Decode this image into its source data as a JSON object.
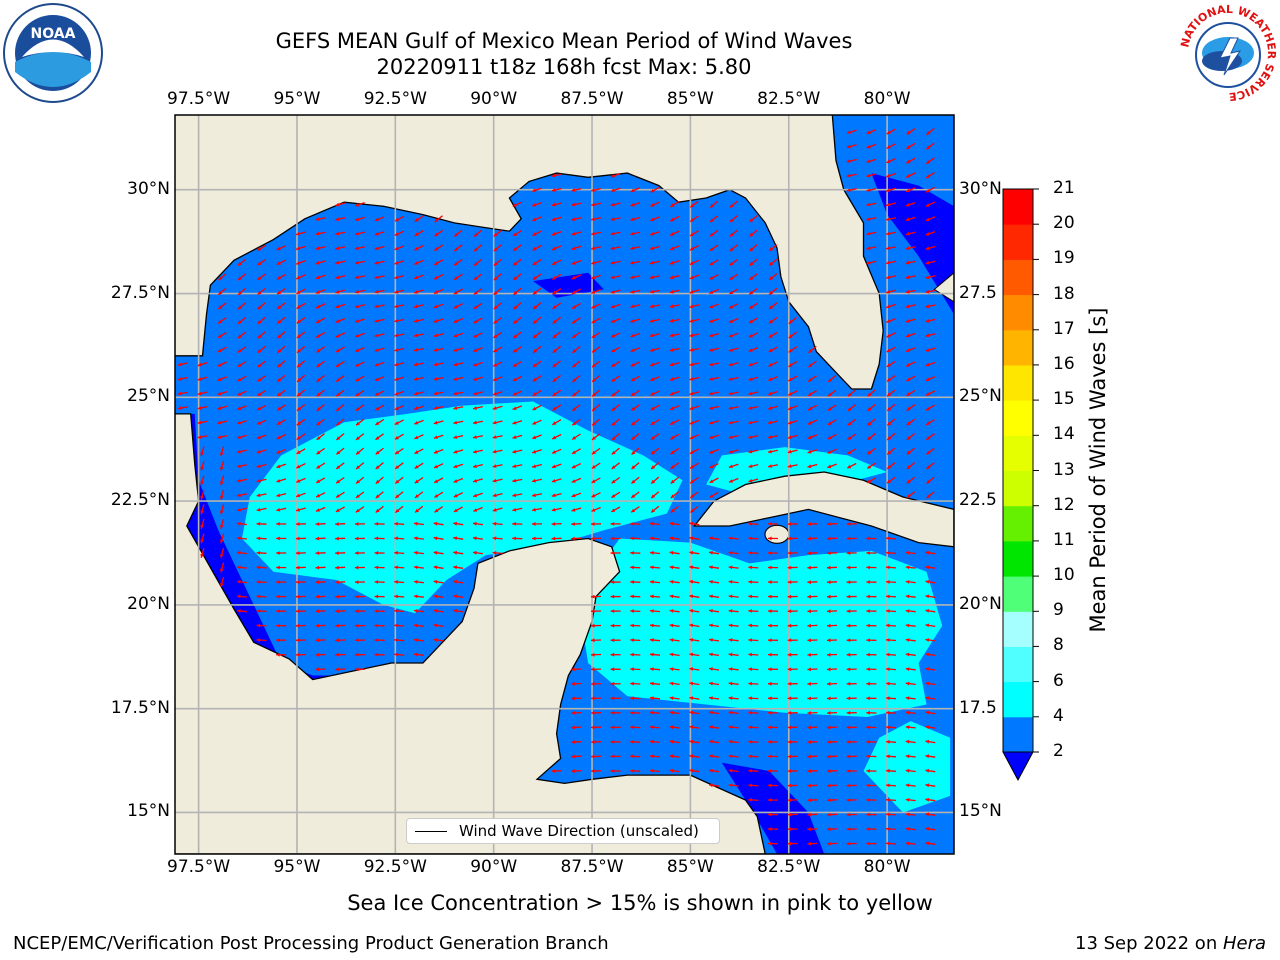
{
  "header": {
    "title_line1": "GEFS MEAN Gulf of Mexico Mean Period of Wind Waves",
    "title_line2": "20220911 t18z 168h fcst   Max: 5.80"
  },
  "logos": {
    "left": {
      "name": "noaa-logo",
      "text": "NOAA",
      "ring_text": "NATIONAL OCEANIC AND ATMOSPHERIC ADMINISTRATION · U.S. DEPARTMENT OF COMMERCE"
    },
    "right": {
      "name": "nws-logo",
      "ring_text": "NATIONAL WEATHER SERVICE"
    }
  },
  "map": {
    "lon_ticks": [
      "97.5°W",
      "95°W",
      "92.5°W",
      "90°W",
      "87.5°W",
      "85°W",
      "82.5°W",
      "80°W"
    ],
    "lat_ticks": [
      "30°N",
      "27.5°N",
      "25°N",
      "22.5°N",
      "20°N",
      "17.5°N",
      "15°N"
    ],
    "lat_ticks_right": [
      "30°N",
      "27.5",
      "25°N",
      "22.5",
      "20°N",
      "17.5",
      "15°N"
    ],
    "lon_range": [
      -98.1,
      -78.3
    ],
    "lat_range": [
      14.0,
      31.8
    ],
    "land_color": "#efecdc",
    "arrow_color": "#ff0000",
    "legend_label": "Wind Wave Direction (unscaled)"
  },
  "colorbar": {
    "label": "Mean Period of Wind Waves [s]",
    "ticks": [
      "2",
      "4",
      "6",
      "8",
      "9",
      "10",
      "11",
      "12",
      "13",
      "14",
      "15",
      "16",
      "17",
      "18",
      "19",
      "20",
      "21"
    ],
    "colors": [
      "#0078ff",
      "#00ffff",
      "#50ffff",
      "#a5ffff",
      "#50ff78",
      "#00e600",
      "#64f000",
      "#cdff00",
      "#e6ff00",
      "#ffff00",
      "#ffe600",
      "#ffb400",
      "#ff8c00",
      "#ff5a00",
      "#ff2800",
      "#ff0000"
    ],
    "extend_color": "#0000ff"
  },
  "footer": {
    "ice_note": "Sea Ice Concentration > 15% is shown in pink to yellow",
    "credit": "NCEP/EMC/Verification Post Processing Product Generation Branch",
    "date": "13 Sep 2022 on ",
    "host": "Hera"
  }
}
